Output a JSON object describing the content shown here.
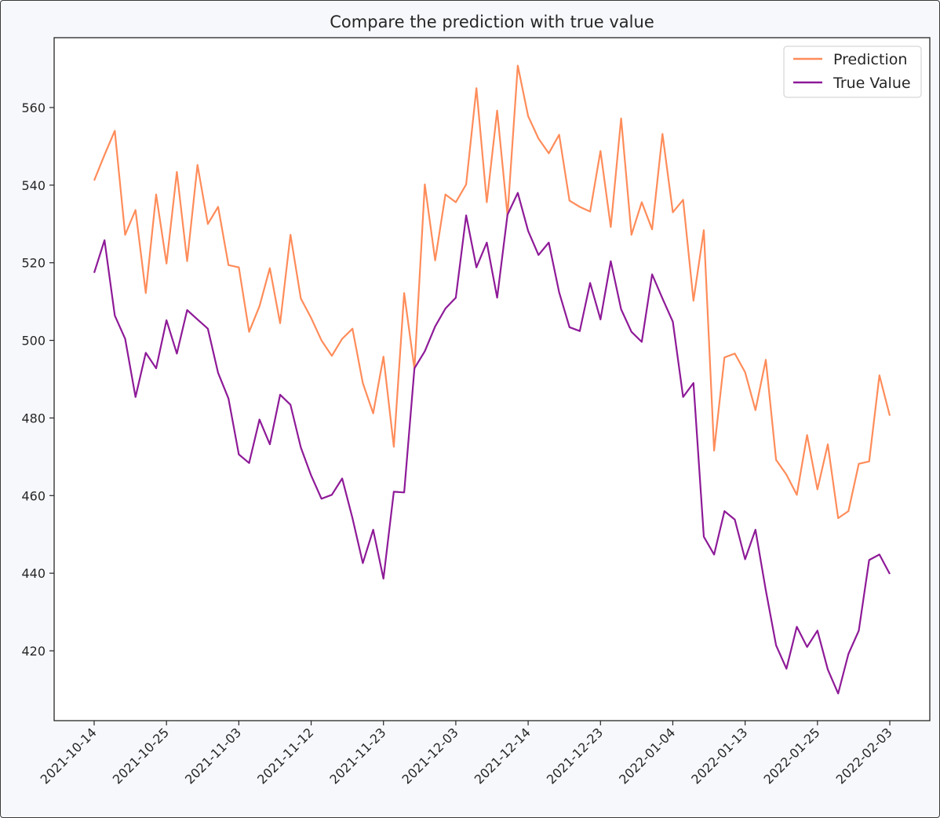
{
  "chart_data": {
    "type": "line",
    "title": "Compare the prediction with true value",
    "xlabel": "",
    "ylabel": "",
    "x_tick_labels": [
      "2021-10-14",
      "2021-10-25",
      "2021-11-03",
      "2021-11-12",
      "2021-11-23",
      "2021-12-03",
      "2021-12-14",
      "2021-12-23",
      "2022-01-04",
      "2022-01-13",
      "2022-01-25",
      "2022-02-03"
    ],
    "y_ticks": [
      420,
      440,
      460,
      480,
      500,
      520,
      540,
      560
    ],
    "ylim": [
      402,
      578
    ],
    "grid": false,
    "legend_position": "top-right",
    "colors": {
      "prediction": "#ff8c5a",
      "true_value": "#8e1a98"
    },
    "series": [
      {
        "name": "Prediction",
        "values": [
          541.2,
          547.8,
          554.0,
          527.2,
          533.6,
          512.2,
          537.6,
          519.8,
          543.4,
          520.4,
          545.2,
          530.0,
          534.4,
          519.4,
          518.8,
          502.2,
          508.8,
          518.6,
          504.4,
          527.2,
          510.8,
          505.8,
          500.0,
          496.0,
          500.4,
          503.0,
          489.0,
          481.2,
          495.8,
          472.6,
          512.2,
          492.6,
          540.2,
          520.6,
          537.6,
          535.6,
          540.2,
          565.0,
          535.6,
          559.2,
          532.2,
          570.8,
          557.8,
          552.0,
          548.2,
          553.0,
          536.0,
          534.4,
          533.2,
          548.8,
          529.2,
          557.2,
          527.2,
          535.6,
          528.6,
          553.2,
          533.0,
          536.2,
          510.2,
          528.4,
          471.6,
          495.6,
          496.6,
          491.8,
          482.0,
          495.0,
          469.2,
          465.4,
          460.2,
          475.6,
          461.6,
          473.2,
          454.2,
          456.0,
          468.2,
          468.8,
          491.0,
          480.6
        ]
      },
      {
        "name": "True Value",
        "values": [
          517.4,
          525.8,
          506.4,
          500.4,
          485.4,
          496.8,
          492.8,
          505.2,
          496.6,
          507.8,
          505.4,
          503.0,
          491.6,
          485.0,
          470.6,
          468.4,
          479.6,
          473.2,
          486.0,
          483.4,
          472.4,
          465.2,
          459.2,
          460.2,
          464.4,
          454.2,
          442.6,
          451.2,
          438.6,
          461.0,
          460.8,
          492.8,
          497.2,
          503.6,
          508.2,
          511.0,
          532.2,
          518.8,
          525.2,
          511.0,
          532.4,
          538.0,
          528.2,
          522.0,
          525.2,
          512.4,
          503.4,
          502.4,
          514.8,
          505.4,
          520.4,
          508.0,
          502.2,
          499.6,
          517.0,
          510.8,
          504.8,
          485.4,
          489.0,
          449.4,
          444.8,
          456.0,
          453.8,
          443.6,
          451.2,
          435.6,
          421.4,
          415.4,
          426.2,
          421.0,
          425.2,
          415.2,
          409.0,
          419.2,
          425.2,
          443.4,
          444.8,
          439.8
        ]
      }
    ]
  }
}
